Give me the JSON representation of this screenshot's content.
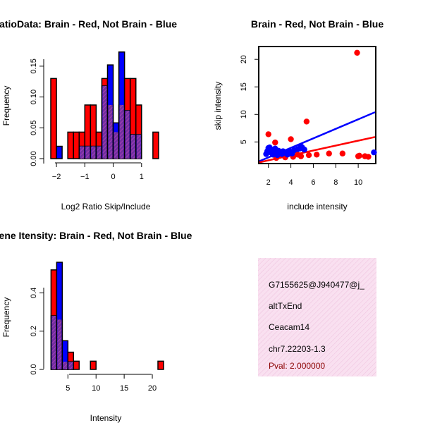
{
  "colors": {
    "red": "#ff0000",
    "blue": "#0000ff",
    "purple": "#6a2d96",
    "pink_fill": "#f8d8ec",
    "pink_hatch": "#e9a6cd",
    "pval": "#8b0000",
    "axis": "#000000"
  },
  "chart_data": [
    {
      "id": "ratio_hist",
      "type": "bar",
      "title": "RatioData: Brain - Red, Not Brain - Blue",
      "xlabel": "Log2 Ratio Skip/Include",
      "ylabel": "Frequency",
      "xlim": [
        -2.25,
        1.85
      ],
      "ylim": [
        0,
        0.175
      ],
      "x_ticks": [
        -2,
        -1,
        0,
        1
      ],
      "x_tick_labels": [
        "−2",
        "−1",
        "0",
        "1"
      ],
      "y_ticks": [
        0,
        0.05,
        0.1,
        0.15
      ],
      "y_tick_labels": [
        "0.00",
        "0.05",
        "0.10",
        "0.15"
      ],
      "bin_width": 0.2,
      "series": [
        {
          "name": "Brain",
          "color": "red",
          "bins": [
            [
              -2.2,
              0.13
            ],
            [
              -1.6,
              0.043
            ],
            [
              -1.4,
              0.043
            ],
            [
              -1.2,
              0.043
            ],
            [
              -1.0,
              0.087
            ],
            [
              -0.8,
              0.087
            ],
            [
              -0.6,
              0.043
            ],
            [
              -0.4,
              0.13
            ],
            [
              -0.2,
              0.087
            ],
            [
              0.0,
              0.043
            ],
            [
              0.2,
              0.087
            ],
            [
              0.4,
              0.13
            ],
            [
              0.6,
              0.13
            ],
            [
              0.8,
              0.087
            ],
            [
              1.4,
              0.043
            ]
          ]
        },
        {
          "name": "Not Brain",
          "color": "blue",
          "bins": [
            [
              -2.0,
              0.02
            ],
            [
              -1.2,
              0.02
            ],
            [
              -1.0,
              0.02
            ],
            [
              -0.8,
              0.02
            ],
            [
              -0.6,
              0.02
            ],
            [
              -0.4,
              0.118
            ],
            [
              -0.2,
              0.152
            ],
            [
              0.0,
              0.058
            ],
            [
              0.2,
              0.173
            ],
            [
              0.4,
              0.078
            ],
            [
              0.6,
              0.039
            ],
            [
              0.8,
              0.039
            ]
          ]
        }
      ]
    },
    {
      "id": "intensity_scatter",
      "type": "scatter",
      "title": "Brain - Red, Not Brain - Blue",
      "xlabel": "include intensity",
      "ylabel": "skip intensity",
      "xlim": [
        1.2,
        11.5
      ],
      "ylim": [
        1.2,
        22.2
      ],
      "x_ticks": [
        2,
        4,
        6,
        8,
        10
      ],
      "x_tick_labels": [
        "2",
        "4",
        "6",
        "8",
        "10"
      ],
      "y_ticks": [
        5,
        10,
        15,
        20
      ],
      "y_tick_labels": [
        "5",
        "10",
        "15",
        "20"
      ],
      "series": [
        {
          "name": "Brain",
          "color": "red",
          "points": [
            [
              9.9,
              21.2
            ],
            [
              2.0,
              6.4
            ],
            [
              4.0,
              5.5
            ],
            [
              5.4,
              8.7
            ],
            [
              2.6,
              4.9
            ],
            [
              2.3,
              3.0
            ],
            [
              3.0,
              2.5
            ],
            [
              3.5,
              2.2
            ],
            [
              4.6,
              2.7
            ],
            [
              4.9,
              2.4
            ],
            [
              5.6,
              2.6
            ],
            [
              7.4,
              2.9
            ],
            [
              8.6,
              2.9
            ],
            [
              10.0,
              2.4
            ],
            [
              10.1,
              2.5
            ],
            [
              10.6,
              2.4
            ],
            [
              10.9,
              2.3
            ],
            [
              2.7,
              2.1
            ],
            [
              4.2,
              2.3
            ],
            [
              6.3,
              2.7
            ]
          ]
        },
        {
          "name": "Not Brain",
          "color": "blue",
          "points": [
            [
              1.8,
              2.8
            ],
            [
              1.9,
              3.3
            ],
            [
              2.0,
              3.9
            ],
            [
              2.1,
              4.0
            ],
            [
              2.2,
              3.1
            ],
            [
              2.3,
              3.6
            ],
            [
              2.4,
              2.7
            ],
            [
              2.5,
              3.3
            ],
            [
              2.6,
              3.8
            ],
            [
              2.7,
              3.0
            ],
            [
              2.8,
              2.6
            ],
            [
              2.9,
              3.4
            ],
            [
              3.0,
              3.1
            ],
            [
              3.2,
              2.8
            ],
            [
              3.3,
              3.3
            ],
            [
              3.5,
              3.0
            ],
            [
              3.7,
              2.7
            ],
            [
              3.9,
              3.3
            ],
            [
              4.1,
              2.9
            ],
            [
              4.3,
              3.5
            ],
            [
              4.6,
              3.7
            ],
            [
              4.8,
              3.8
            ],
            [
              4.9,
              4.2
            ],
            [
              5.0,
              4.0
            ],
            [
              5.2,
              3.6
            ],
            [
              11.4,
              3.1
            ]
          ]
        }
      ],
      "fit_lines": [
        {
          "name": "Not Brain fit",
          "color": "blue",
          "from": [
            1.2,
            1.5
          ],
          "to": [
            11.5,
            10.4
          ]
        },
        {
          "name": "Brain fit",
          "color": "red",
          "from": [
            1.2,
            1.3
          ],
          "to": [
            11.5,
            5.9
          ]
        }
      ]
    },
    {
      "id": "gene_intensity_hist",
      "type": "bar",
      "title": "Gene Itensity: Brain - Red, Not Brain - Blue",
      "xlabel": "Intensity",
      "ylabel": "Frequency",
      "xlim": [
        1.2,
        22
      ],
      "ylim": [
        0,
        0.56
      ],
      "x_ticks": [
        5,
        10,
        15,
        20
      ],
      "x_tick_labels": [
        "5",
        "10",
        "15",
        "20"
      ],
      "y_ticks": [
        0,
        0.2,
        0.4
      ],
      "y_tick_labels": [
        "0.0",
        "0.2",
        "0.4"
      ],
      "bin_width": 1,
      "series": [
        {
          "name": "Brain",
          "color": "red",
          "bins": [
            [
              2,
              0.52
            ],
            [
              3,
              0.26
            ],
            [
              4,
              0.04
            ],
            [
              5,
              0.09
            ],
            [
              6,
              0.043
            ],
            [
              9,
              0.043
            ],
            [
              21,
              0.043
            ]
          ]
        },
        {
          "name": "Not Brain",
          "color": "blue",
          "bins": [
            [
              2,
              0.28
            ],
            [
              3,
              0.56
            ],
            [
              4,
              0.15
            ],
            [
              5,
              0.04
            ]
          ]
        }
      ]
    }
  ],
  "info_box": {
    "lines": [
      "G7155625@J940477@j_",
      "altTxEnd",
      "Ceacam14",
      "chr7.22203-1.3"
    ],
    "pval": "Pval: 2.000000"
  }
}
